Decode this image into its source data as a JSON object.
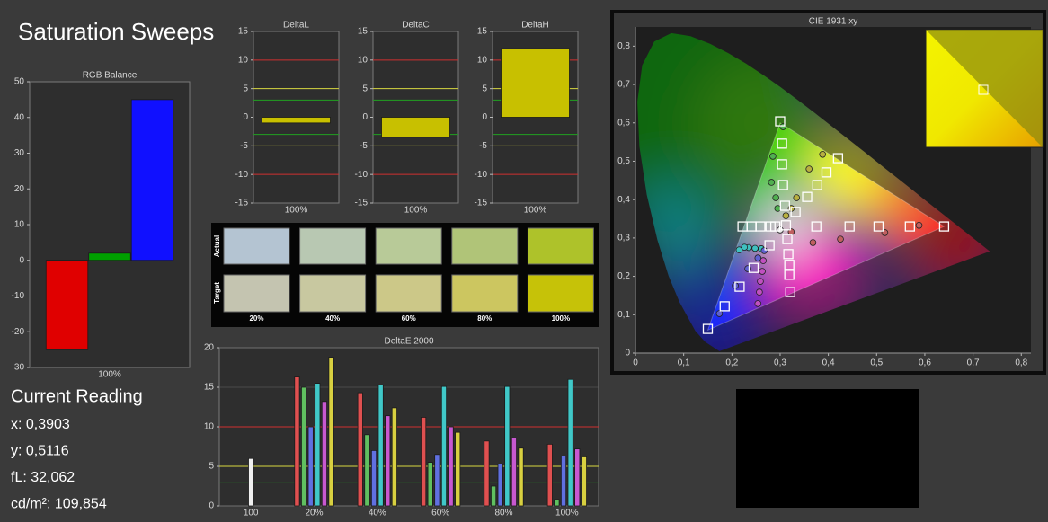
{
  "header": {
    "title": "Saturation Sweeps"
  },
  "current_reading": {
    "title": "Current Reading",
    "lines": [
      "x: 0,3903",
      "y: 0,5116",
      "fL: 32,062",
      "cd/m²: 109,854"
    ]
  },
  "swatches": {
    "row_labels": [
      "Actual",
      "Target"
    ],
    "column_labels": [
      "20%",
      "40%",
      "60%",
      "80%",
      "100%"
    ],
    "actual": [
      "#b4c4d2",
      "#b8c8b2",
      "#b8ca98",
      "#b0c478",
      "#aec22a"
    ],
    "target": [
      "#c4c4b0",
      "#c8c8a0",
      "#ccc888",
      "#ccc660",
      "#c6c208"
    ]
  },
  "chart_data": [
    {
      "type": "bar",
      "title": "RGB Balance",
      "categories": [
        "100%"
      ],
      "series": [
        {
          "color": "#e00000",
          "values": [
            -25
          ]
        },
        {
          "color": "#00a000",
          "values": [
            2
          ]
        },
        {
          "color": "#1010ff",
          "values": [
            45
          ]
        }
      ],
      "ylim": [
        -30,
        50
      ],
      "yticks": [
        -30,
        -20,
        -10,
        0,
        10,
        20,
        30,
        40,
        50
      ]
    },
    {
      "type": "bar",
      "title": "DeltaL",
      "categories": [
        "100%"
      ],
      "series": [
        {
          "color": "#c8c000",
          "values": [
            -1
          ]
        }
      ],
      "ylim": [
        -15,
        15
      ],
      "yticks": [
        -15,
        -10,
        -5,
        0,
        5,
        10,
        15
      ],
      "reference_lines": [
        {
          "value": 10,
          "color": "#d03030"
        },
        {
          "value": -10,
          "color": "#d03030"
        },
        {
          "value": 5,
          "color": "#d8d840"
        },
        {
          "value": -5,
          "color": "#d8d840"
        },
        {
          "value": 3,
          "color": "#20a020"
        },
        {
          "value": -3,
          "color": "#20a020"
        }
      ]
    },
    {
      "type": "bar",
      "title": "DeltaC",
      "categories": [
        "100%"
      ],
      "series": [
        {
          "color": "#c8c000",
          "values": [
            -3.5
          ]
        }
      ],
      "ylim": [
        -15,
        15
      ],
      "yticks": [
        -15,
        -10,
        -5,
        0,
        5,
        10,
        15
      ],
      "reference_lines": [
        {
          "value": 10,
          "color": "#d03030"
        },
        {
          "value": -10,
          "color": "#d03030"
        },
        {
          "value": 5,
          "color": "#d8d840"
        },
        {
          "value": -5,
          "color": "#d8d840"
        },
        {
          "value": 3,
          "color": "#20a020"
        },
        {
          "value": -3,
          "color": "#20a020"
        }
      ]
    },
    {
      "type": "bar",
      "title": "DeltaH",
      "categories": [
        "100%"
      ],
      "series": [
        {
          "color": "#c8c000",
          "values": [
            12
          ]
        }
      ],
      "ylim": [
        -15,
        15
      ],
      "yticks": [
        -15,
        -10,
        -5,
        0,
        5,
        10,
        15
      ],
      "reference_lines": [
        {
          "value": 10,
          "color": "#d03030"
        },
        {
          "value": -10,
          "color": "#d03030"
        },
        {
          "value": 5,
          "color": "#d8d840"
        },
        {
          "value": -5,
          "color": "#d8d840"
        },
        {
          "value": 3,
          "color": "#20a020"
        },
        {
          "value": -3,
          "color": "#20a020"
        }
      ]
    },
    {
      "type": "bar",
      "title": "DeltaE 2000",
      "categories": [
        "100",
        "20%",
        "40%",
        "60%",
        "80%",
        "100%"
      ],
      "series": [
        {
          "color": "#f0f0f0",
          "values": [
            6,
            null,
            null,
            null,
            null,
            null
          ]
        },
        {
          "color": "#e05050",
          "values": [
            null,
            16.3,
            14.3,
            11.2,
            8.2,
            7.8
          ]
        },
        {
          "color": "#60c060",
          "values": [
            null,
            15,
            9,
            5.5,
            2.5,
            0.8
          ]
        },
        {
          "color": "#6070e0",
          "values": [
            null,
            10,
            7,
            6.5,
            5.3,
            6.3
          ]
        },
        {
          "color": "#40c8c8",
          "values": [
            null,
            15.5,
            15.3,
            15.1,
            15.1,
            16
          ]
        },
        {
          "color": "#c858d0",
          "values": [
            null,
            13.2,
            11.4,
            10,
            8.6,
            7.2
          ]
        },
        {
          "color": "#d8d040",
          "values": [
            null,
            18.8,
            12.4,
            9.3,
            7.3,
            6.2
          ]
        }
      ],
      "ylim": [
        0,
        20
      ],
      "yticks": [
        0,
        5,
        10,
        15,
        20
      ],
      "grid": true,
      "reference_lines": [
        {
          "value": 10,
          "color": "#d03030"
        },
        {
          "value": 5,
          "color": "#d8d840"
        },
        {
          "value": 3,
          "color": "#20a020"
        }
      ]
    },
    {
      "type": "scatter",
      "title": "CIE 1931 xy",
      "series": [
        {
          "marker": "square",
          "color": "#ffffff",
          "x": [
            0.312,
            0.375,
            0.444,
            0.504,
            0.569,
            0.64,
            0.31,
            0.306,
            0.304,
            0.304,
            0.3,
            0.278,
            0.245,
            0.216,
            0.185,
            0.15,
            0.29,
            0.28,
            0.259,
            0.241,
            0.222,
            0.315,
            0.317,
            0.319,
            0.319,
            0.321,
            0.332,
            0.356,
            0.377,
            0.396,
            0.42
          ],
          "values": [
            0.333,
            0.33,
            0.33,
            0.33,
            0.33,
            0.33,
            0.384,
            0.438,
            0.492,
            0.546,
            0.604,
            0.281,
            0.222,
            0.173,
            0.122,
            0.063,
            0.33,
            0.33,
            0.33,
            0.33,
            0.33,
            0.297,
            0.258,
            0.23,
            0.204,
            0.159,
            0.368,
            0.407,
            0.438,
            0.471,
            0.508
          ]
        },
        {
          "marker": "circle",
          "color": "#e8e8e8",
          "x": [
            0.3
          ],
          "values": [
            0.321
          ]
        },
        {
          "marker": "circle",
          "color": "#c06060",
          "x": [
            0.323,
            0.368,
            0.425,
            0.517,
            0.588
          ],
          "values": [
            0.316,
            0.288,
            0.297,
            0.314,
            0.333
          ]
        },
        {
          "marker": "circle",
          "color": "#50b050",
          "x": [
            0.295,
            0.291,
            0.282,
            0.285,
            0.306
          ],
          "values": [
            0.377,
            0.405,
            0.445,
            0.513,
            0.59
          ]
        },
        {
          "marker": "circle",
          "color": "#6060d0",
          "x": [
            0.267,
            0.254,
            0.233,
            0.207,
            0.174
          ],
          "values": [
            0.267,
            0.248,
            0.22,
            0.176,
            0.103
          ]
        },
        {
          "marker": "circle",
          "color": "#40c0c0",
          "x": [
            0.261,
            0.248,
            0.235,
            0.226,
            0.215
          ],
          "values": [
            0.272,
            0.273,
            0.275,
            0.276,
            0.269
          ]
        },
        {
          "marker": "circle",
          "color": "#c050c0",
          "x": [
            0.265,
            0.263,
            0.259,
            0.257,
            0.254
          ],
          "values": [
            0.241,
            0.213,
            0.187,
            0.159,
            0.129
          ]
        },
        {
          "marker": "circle",
          "color": "#b8b040",
          "x": [
            0.312,
            0.323,
            0.334,
            0.36,
            0.388
          ],
          "values": [
            0.358,
            0.377,
            0.405,
            0.48,
            0.518
          ]
        }
      ],
      "xlim": [
        0,
        0.82
      ],
      "ylim": [
        0,
        0.85
      ],
      "xticks": [
        0,
        {
          "value": 0.1,
          "label": "0,1"
        },
        {
          "value": 0.2,
          "label": "0,2"
        },
        {
          "value": 0.3,
          "label": "0,3"
        },
        {
          "value": 0.4,
          "label": "0,4"
        },
        {
          "value": 0.5,
          "label": "0,5"
        },
        {
          "value": 0.6,
          "label": "0,6"
        },
        {
          "value": 0.7,
          "label": "0,7"
        },
        {
          "value": 0.8,
          "label": "0,8"
        }
      ],
      "yticks": [
        0,
        {
          "value": 0.1,
          "label": "0,1"
        },
        {
          "value": 0.2,
          "label": "0,2"
        },
        {
          "value": 0.3,
          "label": "0,3"
        },
        {
          "value": 0.4,
          "label": "0,4"
        },
        {
          "value": 0.5,
          "label": "0,5"
        },
        {
          "value": 0.6,
          "label": "0,6"
        },
        {
          "value": 0.7,
          "label": "0,7"
        },
        {
          "value": 0.8,
          "label": "0,8"
        }
      ]
    }
  ]
}
